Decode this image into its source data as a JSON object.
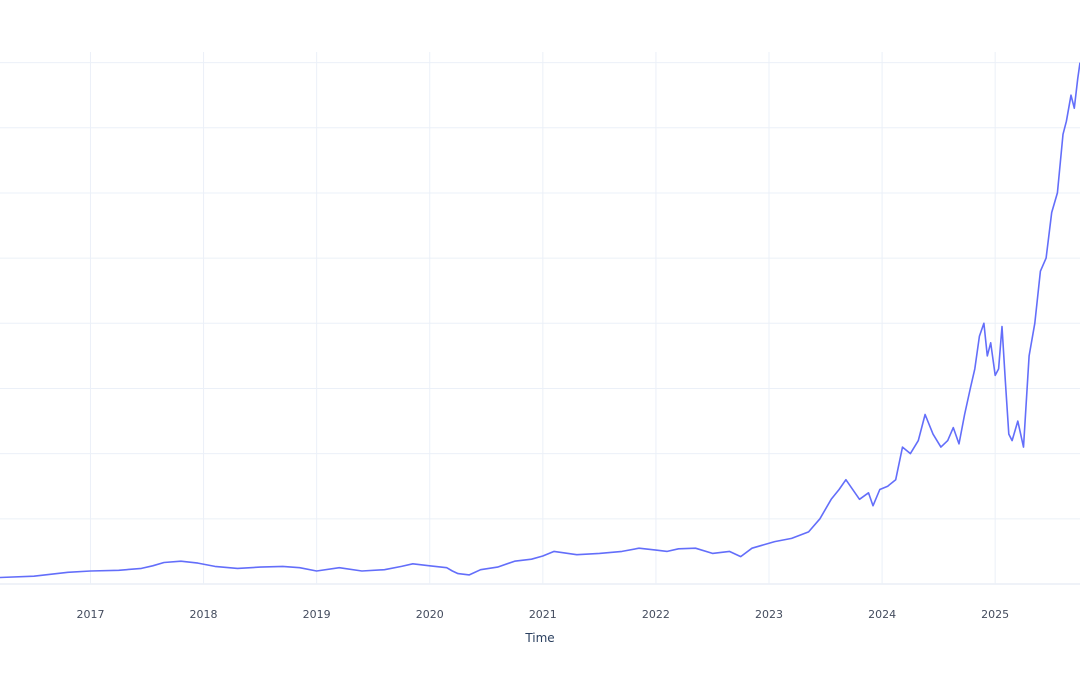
{
  "chart_data": {
    "type": "line",
    "title": "",
    "xlabel": "Time",
    "ylabel": "",
    "x_tick_labels": [
      "2017",
      "2018",
      "2019",
      "2020",
      "2021",
      "2022",
      "2023",
      "2024",
      "2025"
    ],
    "x_tick_values": [
      2017,
      2018,
      2019,
      2020,
      2021,
      2022,
      2023,
      2024,
      2025
    ],
    "xlim": [
      2016.2,
      2025.75
    ],
    "ylim": [
      0,
      8.5
    ],
    "y_gridlines": [
      0,
      1,
      2,
      3,
      4,
      5,
      6,
      7,
      8
    ],
    "grid": true,
    "legend": "none",
    "colors": {
      "line": "#636efa",
      "grid": "#ebf0f8",
      "tick_text": "#444c5e",
      "axis_title": "#2a3f5f"
    },
    "series": [
      {
        "name": "",
        "x": [
          2016.2,
          2016.5,
          2016.8,
          2017.0,
          2017.25,
          2017.45,
          2017.55,
          2017.65,
          2017.8,
          2017.95,
          2018.1,
          2018.3,
          2018.5,
          2018.7,
          2018.85,
          2019.0,
          2019.2,
          2019.4,
          2019.6,
          2019.75,
          2019.85,
          2020.0,
          2020.15,
          2020.2,
          2020.25,
          2020.35,
          2020.45,
          2020.6,
          2020.75,
          2020.9,
          2021.0,
          2021.1,
          2021.3,
          2021.5,
          2021.7,
          2021.85,
          2022.0,
          2022.1,
          2022.2,
          2022.35,
          2022.5,
          2022.65,
          2022.75,
          2022.85,
          2022.95,
          2023.05,
          2023.2,
          2023.35,
          2023.45,
          2023.55,
          2023.62,
          2023.68,
          2023.72,
          2023.8,
          2023.88,
          2023.92,
          2023.98,
          2024.05,
          2024.12,
          2024.18,
          2024.25,
          2024.32,
          2024.38,
          2024.45,
          2024.52,
          2024.58,
          2024.63,
          2024.68,
          2024.73,
          2024.78,
          2024.82,
          2024.86,
          2024.9,
          2024.93,
          2024.96,
          2025.0,
          2025.03,
          2025.06,
          2025.09,
          2025.12,
          2025.15,
          2025.2,
          2025.25,
          2025.3,
          2025.35,
          2025.4,
          2025.45,
          2025.5,
          2025.55,
          2025.6,
          2025.63,
          2025.67,
          2025.7,
          2025.73,
          2025.75
        ],
        "values": [
          0.1,
          0.12,
          0.18,
          0.2,
          0.21,
          0.24,
          0.28,
          0.33,
          0.35,
          0.32,
          0.27,
          0.24,
          0.26,
          0.27,
          0.25,
          0.2,
          0.25,
          0.2,
          0.22,
          0.27,
          0.31,
          0.28,
          0.25,
          0.2,
          0.16,
          0.14,
          0.22,
          0.26,
          0.35,
          0.38,
          0.43,
          0.5,
          0.45,
          0.47,
          0.5,
          0.55,
          0.52,
          0.5,
          0.54,
          0.55,
          0.47,
          0.5,
          0.42,
          0.55,
          0.6,
          0.65,
          0.7,
          0.8,
          1.0,
          1.3,
          1.45,
          1.6,
          1.5,
          1.3,
          1.4,
          1.2,
          1.45,
          1.5,
          1.6,
          2.1,
          2.0,
          2.2,
          2.6,
          2.3,
          2.1,
          2.2,
          2.4,
          2.15,
          2.6,
          3.0,
          3.3,
          3.8,
          4.0,
          3.5,
          3.7,
          3.2,
          3.3,
          3.95,
          3.1,
          2.3,
          2.2,
          2.5,
          2.1,
          3.5,
          4.0,
          4.8,
          5.0,
          5.7,
          6.0,
          6.9,
          7.1,
          7.5,
          7.3,
          7.75,
          8.0
        ]
      }
    ]
  }
}
